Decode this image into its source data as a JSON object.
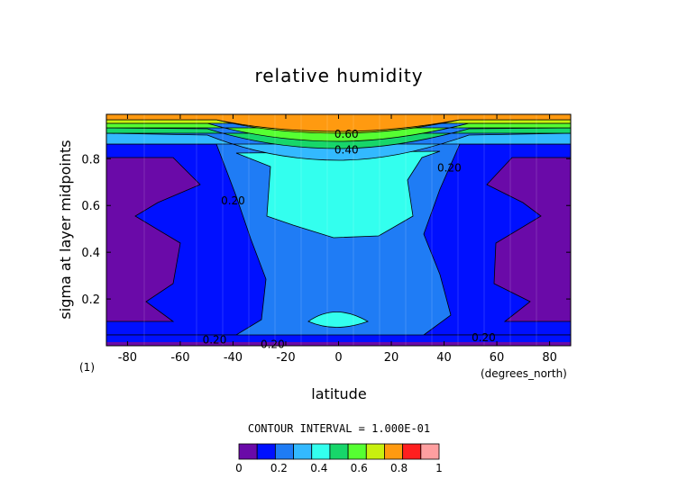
{
  "chart_data": {
    "type": "heatmap",
    "title": "relative humidity",
    "xlabel": "latitude",
    "ylabel": "sigma at layer midpoints",
    "x_units": "(degrees_north)",
    "panel_label": "(1)",
    "xlim": [
      -88,
      88
    ],
    "ylim": [
      0.0,
      0.99
    ],
    "xticks": [
      -80,
      -60,
      -40,
      -20,
      0,
      20,
      40,
      60,
      80
    ],
    "yticks": [
      0.2,
      0.4,
      0.6,
      0.8
    ],
    "contour_interval_text": "CONTOUR INTERVAL = 1.000E-01",
    "contour_labels": [
      {
        "text": "0.60",
        "x": 3,
        "y": 0.905
      },
      {
        "text": "0.40",
        "x": 3,
        "y": 0.838
      },
      {
        "text": "0.20",
        "x": -47,
        "y": 0.025
      },
      {
        "text": "0.20",
        "x": -25,
        "y": 0.005
      },
      {
        "text": "0.20",
        "x": 55,
        "y": 0.035
      },
      {
        "text": "0.20",
        "x": -40,
        "y": 0.62
      },
      {
        "text": "0.20",
        "x": 42,
        "y": 0.76
      }
    ],
    "levels": [
      0,
      0.1,
      0.2,
      0.3,
      0.4,
      0.5,
      0.6,
      0.7,
      0.8,
      0.9,
      1.0
    ],
    "colorbar_ticks": [
      "0",
      "0.2",
      "0.4",
      "0.6",
      "0.8",
      "1"
    ],
    "colors": [
      "#6a0aa8",
      "#0010ff",
      "#1f7cf5",
      "#33b9ff",
      "#33ffee",
      "#17d66a",
      "#56ff32",
      "#c8f00f",
      "#ff9a10",
      "#ff1f1f",
      "#ff9fa0"
    ],
    "grid": false,
    "fields": {
      "dry_band_0_1": "latitude > 55 deg both hemispheres, sigma 0.1-0.8",
      "band_0_2_to_0_3": "midlatitudes 25-55 deg",
      "band_0_3_to_0_4": "subtropics and low levels",
      "band_0_4_to_0_5": "tropics sigma 0.45-0.8 and small cell near sigma 0.1",
      "top_bands": "0.5-0.9 increasing toward sigma 1"
    }
  }
}
